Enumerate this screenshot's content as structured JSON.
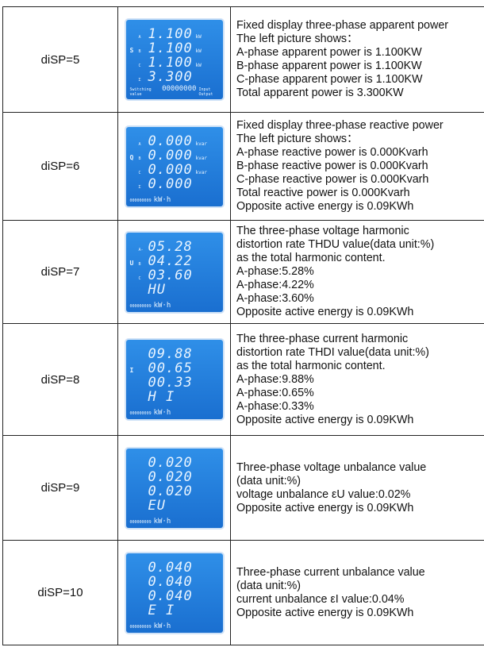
{
  "rows": [
    {
      "label": "diSP=5",
      "lcd": {
        "side": "S",
        "lines": [
          {
            "tag": "A",
            "value": "1.100",
            "unit": "kW"
          },
          {
            "tag": "B",
            "value": "1.100",
            "unit": "kW"
          },
          {
            "tag": "C",
            "value": "1.100",
            "unit": "kW"
          },
          {
            "tag": "Σ",
            "value": "3.300"
          }
        ],
        "footer": [
          "Switching value",
          "00000000",
          "Input Output"
        ]
      },
      "text": [
        "Fixed display three-phase apparent power",
        "The left picture shows：",
        "A-phase apparent  power is 1.100KW",
        "B-phase apparent  power is 1.100KW",
        "C-phase apparent  power is 1.100KW",
        "Total  apparent  power  is  3.300KW"
      ]
    },
    {
      "label": "diSP=6",
      "lcd": {
        "side": "Q",
        "lines": [
          {
            "tag": "A",
            "value": "0.000",
            "unit": "kvar"
          },
          {
            "tag": "B",
            "value": "0.000",
            "unit": "kvar"
          },
          {
            "tag": "C",
            "value": "0.000",
            "unit": "kvar"
          },
          {
            "tag": "Σ",
            "value": "0.000"
          }
        ],
        "footer": [
          "000000009",
          "kW·h"
        ]
      },
      "text": [
        "Fixed display three-phase reactive power",
        "The left picture shows：",
        "A-phase reactive power is 0.000Kvarh",
        "B-phase reactive power is 0.000Kvarh",
        "C-phase reactive power is 0.000Kvarh",
        "Total reactive power is 0.000Kvarh",
        "Opposite active energy is 0.09KWh"
      ]
    },
    {
      "label": "diSP=7",
      "lcd": {
        "side": "U",
        "lines": [
          {
            "tag": "A-",
            "value": "05.28"
          },
          {
            "tag": "B",
            "value": "04.22"
          },
          {
            "tag": "C",
            "value": "03.60"
          },
          {
            "value": "HU"
          }
        ],
        "footer": [
          "000000009",
          "kW·h"
        ]
      },
      "text": [
        "The three-phase voltage harmonic",
        "distortion rate THDU value(data unit:%)",
        "as the total harmonic content.",
        "A-phase:5.28%",
        "A-phase:4.22%",
        "A-phase:3.60%",
        "Opposite active energy is 0.09KWh"
      ]
    },
    {
      "label": "diSP=8",
      "lcd": {
        "side": "I",
        "lines": [
          {
            "value": "09.88"
          },
          {
            "value": "00.65"
          },
          {
            "value": "00.33"
          },
          {
            "value": "H I"
          }
        ],
        "footer": [
          "000000009",
          "kW·h"
        ]
      },
      "text": [
        "The three-phase current harmonic",
        "distortion rate THDI value(data unit:%)",
        "as the total harmonic content.",
        "A-phase:9.88%",
        "A-phase:0.65%",
        "A-phase:0.33%",
        "Opposite active energy is 0.09KWh"
      ]
    },
    {
      "label": "diSP=9",
      "lcd": {
        "lines": [
          {
            "value": "0.020"
          },
          {
            "value": "0.020"
          },
          {
            "value": "0.020"
          },
          {
            "value": "EU"
          }
        ],
        "footer": [
          "000000009",
          "kW·h"
        ]
      },
      "text": [
        "Three-phase voltage unbalance value",
        "(data unit:%)",
        "voltage unbalance εU value:0.02%",
        "Opposite active energy is 0.09KWh"
      ]
    },
    {
      "label": "diSP=10",
      "lcd": {
        "lines": [
          {
            "value": "0.040"
          },
          {
            "value": "0.040"
          },
          {
            "value": "0.040"
          },
          {
            "value": "E I"
          }
        ],
        "footer": [
          "000000009",
          "kW·h"
        ]
      },
      "text": [
        "Three-phase current unbalance value",
        "(data unit:%)",
        "current unbalance εI value:0.04%",
        "Opposite active energy is 0.09KWh"
      ]
    }
  ]
}
